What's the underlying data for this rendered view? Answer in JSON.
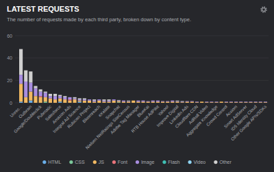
{
  "chart_data": {
    "type": "bar",
    "stacked": true,
    "grid": true,
    "legend": "bottom",
    "title": "LATEST REQUESTS",
    "subtitle": "The number of requests made by each third party, broken down by content type.",
    "categories": [
      "Unrec...",
      null,
      "Outbrain",
      null,
      "Google/Doubleclick",
      null,
      "Pubmatic",
      null,
      "Salesforce",
      null,
      "Amazon Ads",
      null,
      "Integral Ad Science",
      null,
      "Rubicon Project",
      null,
      "Bloomreach",
      null,
      "eXelate",
      null,
      "Snapchat",
      null,
      "Nielsen NetRatings SiteCensus",
      null,
      "Adobe Tag Manager",
      null,
      "BlueKai",
      null,
      "RTB House AdPilot",
      null,
      "Yahoo!",
      null,
      "Improve Digital",
      null,
      "LinkedIn Ads",
      null,
      "Cloudflare CDN",
      null,
      "AdRoll Video",
      null,
      "Aggregate Knowledge",
      null,
      "Crowd Control",
      null,
      "Acxiom",
      null,
      "Smart AdServer",
      null,
      "ID5 Identity Cloud",
      null,
      "Other Google APIs/SDKs"
    ],
    "ylim": [
      0,
      60
    ],
    "yticks": [
      0,
      20,
      40,
      60
    ],
    "series": [
      {
        "name": "HTML",
        "color": "#6aaee8",
        "values": [
          1,
          0,
          2,
          0,
          0,
          0,
          0,
          0,
          1,
          0,
          0,
          0,
          1,
          0,
          0,
          0,
          0,
          0,
          0,
          0,
          0,
          0,
          0,
          0,
          0,
          0,
          0,
          0,
          0,
          0,
          0,
          0,
          0,
          0,
          0,
          0,
          0,
          0,
          0,
          0,
          0,
          0,
          0,
          0,
          0,
          0,
          0,
          0,
          0,
          0,
          0
        ]
      },
      {
        "name": "CSS",
        "color": "#7bc79a",
        "values": [
          0,
          0,
          0,
          0,
          0,
          1,
          0,
          0,
          0,
          0,
          0,
          0,
          0,
          0,
          0,
          0,
          0,
          0,
          0,
          0,
          0.5,
          0,
          0,
          0,
          0,
          0,
          0,
          0,
          0,
          0,
          0,
          0,
          0,
          0,
          0,
          0,
          0,
          0,
          0,
          0,
          0,
          0,
          0,
          0,
          0,
          0,
          0,
          0,
          0,
          0,
          0
        ]
      },
      {
        "name": "JS",
        "color": "#f0b862",
        "values": [
          16,
          5,
          8,
          6,
          5,
          4,
          4,
          3,
          3,
          3,
          2,
          3,
          1,
          2,
          2,
          1,
          2,
          1,
          1,
          2,
          1,
          1,
          1,
          2,
          1,
          1,
          1,
          1,
          1,
          1,
          1,
          1,
          1,
          0.5,
          1,
          1,
          0.5,
          1,
          0.5,
          0.5,
          0.5,
          1,
          0.5,
          0.5,
          0.5,
          0.5,
          0.5,
          0.5,
          0.5,
          0.5,
          0.5
        ]
      },
      {
        "name": "Font",
        "color": "#e8737a",
        "values": [
          0,
          0,
          0,
          0,
          1,
          0,
          0,
          0,
          0,
          0,
          1,
          0,
          0,
          0,
          0,
          0,
          0,
          0,
          0,
          0,
          0,
          0,
          0,
          0,
          0,
          0,
          0,
          0,
          0,
          0,
          0,
          0,
          0,
          0,
          0,
          0,
          0,
          0,
          0,
          0,
          0,
          0,
          0,
          0,
          0,
          0,
          0,
          0,
          0,
          0,
          0
        ]
      },
      {
        "name": "Image",
        "color": "#a98ee0",
        "values": [
          8,
          14,
          8,
          7,
          4,
          4,
          2,
          3,
          2,
          2,
          2,
          1,
          1,
          1,
          1,
          1,
          1,
          1,
          1,
          1,
          0.5,
          1,
          0.5,
          0,
          1,
          1,
          0.5,
          1,
          1,
          0.5,
          0.5,
          1,
          0.5,
          0.5,
          0.5,
          0.5,
          0.5,
          0,
          0.5,
          0.5,
          0.5,
          0,
          0.5,
          0.5,
          0.5,
          0.5,
          0.5,
          0.5,
          0.5,
          0.5,
          0.5
        ]
      },
      {
        "name": "Flash",
        "color": "#3fbfb3",
        "values": [
          0,
          0,
          0,
          0,
          0,
          0,
          0,
          0,
          0,
          0,
          0,
          0,
          0,
          0,
          0,
          0,
          0,
          0,
          0,
          0,
          0,
          0,
          0,
          0,
          0,
          0,
          0,
          0,
          0,
          0,
          0,
          0,
          0,
          0,
          0,
          0,
          0,
          0,
          0,
          0,
          0,
          0,
          0,
          0,
          0,
          0,
          0,
          0,
          0,
          0,
          0
        ]
      },
      {
        "name": "Video",
        "color": "#8fd3f0",
        "values": [
          0,
          0,
          0,
          0,
          0,
          0,
          0,
          0,
          0,
          0,
          0,
          0,
          0,
          0,
          0,
          0,
          0,
          0,
          0,
          0,
          0,
          0,
          0,
          0,
          0,
          0,
          0,
          0,
          0,
          0,
          0,
          0,
          0,
          0,
          0,
          0,
          0,
          0,
          0,
          0,
          0,
          0,
          0,
          0,
          0,
          0,
          0,
          0,
          0,
          0,
          0
        ]
      },
      {
        "name": "Other",
        "color": "#cfcfcf",
        "values": [
          23,
          10,
          10,
          2,
          2,
          1,
          2,
          2,
          1,
          1,
          0,
          1,
          1,
          1,
          0,
          1,
          0,
          1,
          1,
          0,
          0.5,
          0,
          0.5,
          0,
          0,
          0,
          0,
          0,
          0,
          0,
          0,
          0,
          0.5,
          0.5,
          0,
          0,
          0,
          0,
          0,
          0,
          0,
          0,
          0,
          0,
          0,
          0,
          0,
          0,
          0,
          0,
          0
        ]
      }
    ]
  }
}
